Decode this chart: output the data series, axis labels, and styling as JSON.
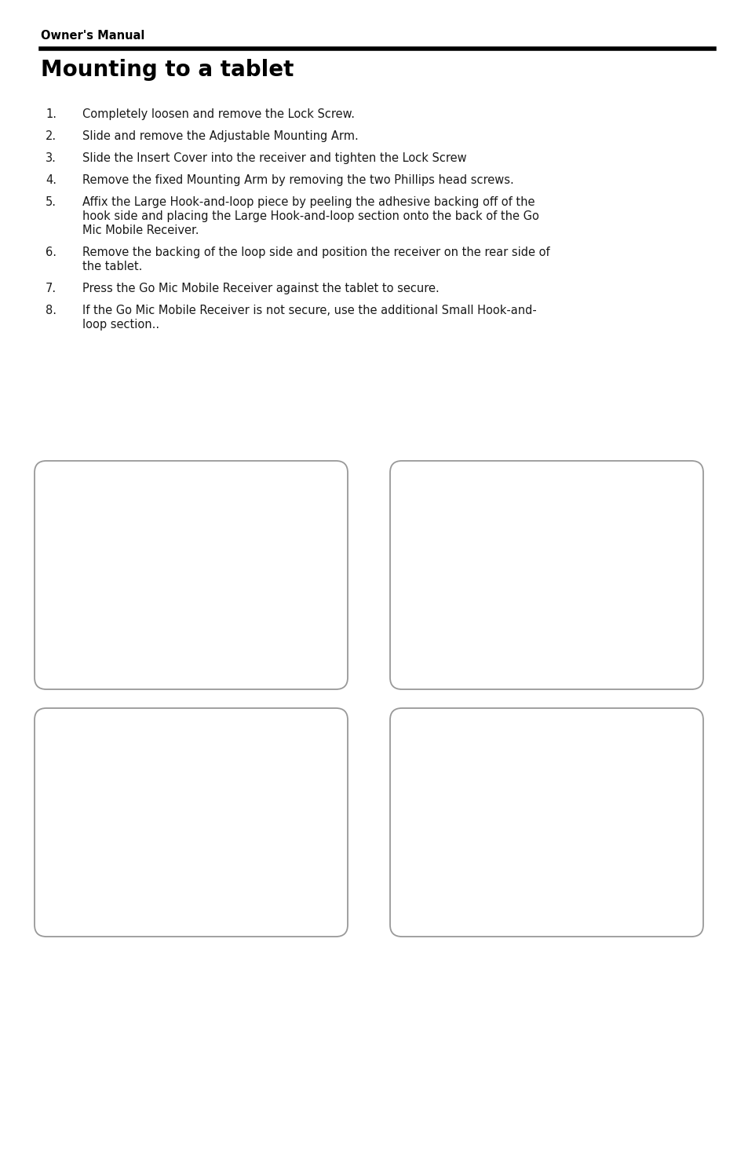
{
  "page_bg": "#ffffff",
  "header_label": "Owner's Manual",
  "header_label_fontsize": 10.5,
  "divider_color": "#000000",
  "divider_lw": 4.0,
  "title": "Mounting to a tablet",
  "title_fontsize": 20,
  "body_fontsize": 10.5,
  "body_color": "#1a1a1a",
  "items": [
    {
      "num": "1.",
      "lines": [
        "Completely loosen and remove the Lock Screw."
      ]
    },
    {
      "num": "2.",
      "lines": [
        "Slide and remove the Adjustable Mounting Arm."
      ]
    },
    {
      "num": "3.",
      "lines": [
        "Slide the Insert Cover into the receiver and tighten the Lock Screw"
      ]
    },
    {
      "num": "4.",
      "lines": [
        "Remove the fixed Mounting Arm by removing the two Phillips head screws."
      ]
    },
    {
      "num": "5.",
      "lines": [
        "Affix the Large Hook-and-loop piece by peeling the adhesive backing off of the",
        "hook side and placing the Large Hook-and-loop section onto the back of the Go",
        "Mic Mobile Receiver."
      ]
    },
    {
      "num": "6.",
      "lines": [
        "Remove the backing of the loop side and position the receiver on the rear side of",
        "the tablet."
      ]
    },
    {
      "num": "7.",
      "lines": [
        "Press the Go Mic Mobile Receiver against the tablet to secure."
      ]
    },
    {
      "num": "8.",
      "lines": [
        "If the Go Mic Mobile Receiver is not secure, use the additional Small Hook-and-",
        "loop section.."
      ]
    }
  ]
}
